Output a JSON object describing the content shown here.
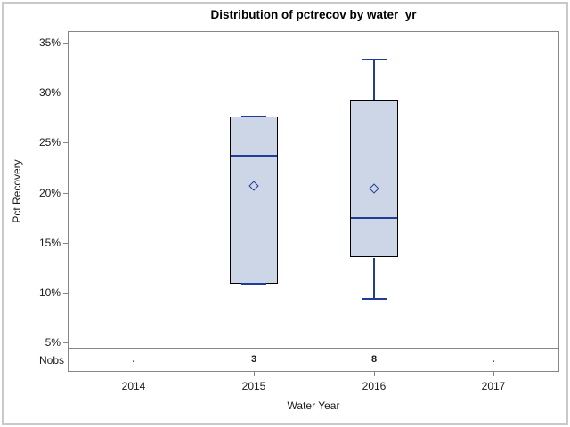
{
  "chart_data": {
    "type": "box",
    "title": "Distribution of pctrecov by water_yr",
    "xlabel": "Water Year",
    "ylabel": "Pct Recovery",
    "categories": [
      "2014",
      "2015",
      "2016",
      "2017"
    ],
    "nobs_label": "Nobs",
    "nobs": [
      ".",
      "3",
      "8",
      "."
    ],
    "y_ticks": [
      35,
      30,
      25,
      20,
      15,
      10,
      5
    ],
    "y_tick_labels": [
      "35%",
      "30%",
      "25%",
      "20%",
      "15%",
      "10%",
      "5%"
    ],
    "ylim": [
      4.5,
      36.2
    ],
    "grid": false,
    "legend": false,
    "boxes": [
      {
        "category": "2015",
        "n": 3,
        "whisker_low": 10.9,
        "q1": 10.9,
        "median": 23.7,
        "mean": 20.7,
        "q3": 27.6,
        "whisker_high": 27.6
      },
      {
        "category": "2016",
        "n": 8,
        "whisker_low": 9.4,
        "q1": 13.5,
        "median": 17.5,
        "mean": 20.4,
        "q3": 29.3,
        "whisker_high": 33.3
      }
    ],
    "colors": {
      "box_fill": "#ccd6e6",
      "box_border": "#000000",
      "line_blue": "#1f3d99",
      "frame_gray": "#868686",
      "text": "#1a1a1a"
    }
  }
}
